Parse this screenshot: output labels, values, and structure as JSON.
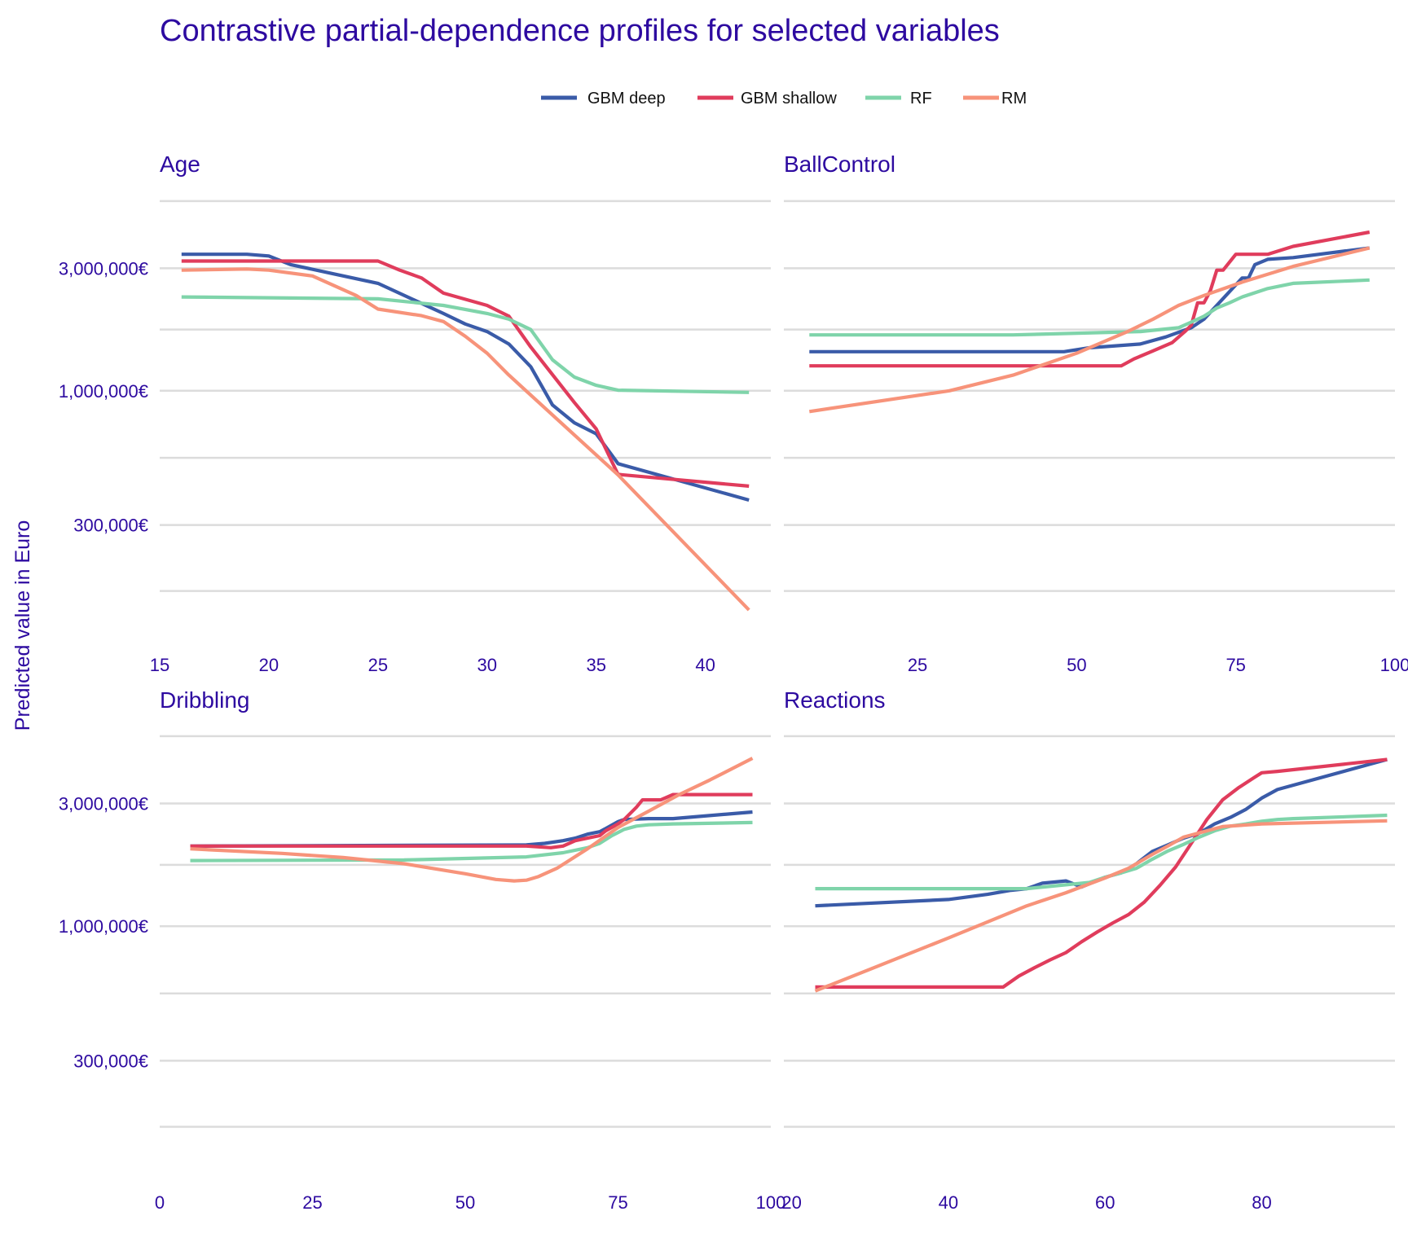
{
  "chart_data": {
    "type": "line",
    "title": "Contrastive partial-dependence profiles for selected variables",
    "ylabel": "Predicted value in Euro",
    "y_scale": "log10",
    "ylim": [
      120000,
      6200000
    ],
    "y_ticks": [
      {
        "value": 300000,
        "label": "300,000€"
      },
      {
        "value": 1000000,
        "label": "1,000,000€"
      },
      {
        "value": 3000000,
        "label": "3,000,000€"
      }
    ],
    "y_minor_gridlines": [
      166000,
      548000,
      1732000,
      5480000
    ],
    "legend_position": "top",
    "legend": [
      {
        "name": "GBM deep",
        "color": "#3a5ba8"
      },
      {
        "name": "GBM shallow",
        "color": "#e03c5c"
      },
      {
        "name": "RF",
        "color": "#7fd4aa"
      },
      {
        "name": "RM",
        "color": "#f7937a"
      }
    ],
    "panels": [
      {
        "name": "Age",
        "xlim": [
          15,
          43
        ],
        "x_ticks": [
          15,
          20,
          25,
          30,
          35,
          40
        ],
        "series": [
          {
            "name": "GBM deep",
            "x": [
              16,
              19,
              20,
              21,
              23,
              25,
              28,
              29,
              30,
              31,
              32,
              33,
              34,
              35,
              36,
              42
            ],
            "y": [
              3400000,
              3400000,
              3350000,
              3100000,
              2850000,
              2620000,
              2000000,
              1820000,
              1700000,
              1520000,
              1240000,
              880000,
              750000,
              680000,
              520000,
              375000
            ]
          },
          {
            "name": "GBM shallow",
            "x": [
              16,
              25,
              26,
              27,
              28,
              30,
              31,
              32,
              34,
              35,
              36,
              42
            ],
            "y": [
              3200000,
              3200000,
              2950000,
              2750000,
              2400000,
              2150000,
              1950000,
              1480000,
              900000,
              710000,
              472000,
              425000
            ]
          },
          {
            "name": "RF",
            "x": [
              16,
              25,
              28,
              30,
              31,
              32,
              33,
              34,
              35,
              36,
              42
            ],
            "y": [
              2320000,
              2280000,
              2150000,
              2000000,
              1900000,
              1730000,
              1320000,
              1130000,
              1050000,
              1005000,
              985000
            ]
          },
          {
            "name": "RM",
            "x": [
              16,
              19,
              20,
              22,
              24,
              25,
              27,
              28,
              29,
              30,
              31,
              36,
              42
            ],
            "y": [
              2950000,
              2980000,
              2950000,
              2800000,
              2350000,
              2080000,
              1960000,
              1860000,
              1630000,
              1400000,
              1150000,
              470000,
              140000
            ]
          }
        ]
      },
      {
        "name": "BallControl",
        "xlim": [
          4,
          100
        ],
        "x_ticks": [
          25,
          50,
          75,
          100
        ],
        "series": [
          {
            "name": "GBM deep",
            "x": [
              8,
              48,
              52,
              60,
              64,
              68,
              70,
              76,
              77,
              78,
              80,
              84,
              96
            ],
            "y": [
              1420000,
              1420000,
              1470000,
              1520000,
              1620000,
              1760000,
              1900000,
              2750000,
              2750000,
              3100000,
              3250000,
              3300000,
              3600000
            ]
          },
          {
            "name": "GBM shallow",
            "x": [
              8,
              57,
              59,
              62,
              65,
              67,
              68,
              69,
              70,
              71,
              72,
              73,
              75,
              76,
              80,
              84,
              96
            ],
            "y": [
              1250000,
              1250000,
              1330000,
              1430000,
              1540000,
              1700000,
              1800000,
              2200000,
              2200000,
              2450000,
              2950000,
              2950000,
              3400000,
              3400000,
              3400000,
              3650000,
              4150000
            ]
          },
          {
            "name": "RF",
            "x": [
              8,
              40,
              60,
              66,
              68,
              70,
              72,
              74,
              76,
              80,
              84,
              96
            ],
            "y": [
              1650000,
              1650000,
              1700000,
              1760000,
              1850000,
              1950000,
              2100000,
              2200000,
              2320000,
              2500000,
              2620000,
              2700000
            ]
          },
          {
            "name": "RM",
            "x": [
              8,
              30,
              40,
              50,
              58,
              62,
              66,
              70,
              76,
              84,
              96
            ],
            "y": [
              830000,
              1000000,
              1150000,
              1400000,
              1700000,
              1900000,
              2150000,
              2350000,
              2650000,
              3050000,
              3600000
            ]
          }
        ]
      },
      {
        "name": "Dribbling",
        "xlim": [
          0,
          100
        ],
        "x_ticks": [
          0,
          25,
          50,
          75,
          100
        ],
        "series": [
          {
            "name": "GBM deep",
            "x": [
              5,
              60,
              63,
              66,
              68,
              70,
              72,
              73,
              75,
              76,
              80,
              84,
              97
            ],
            "y": [
              2050000,
              2070000,
              2100000,
              2150000,
              2200000,
              2280000,
              2330000,
              2400000,
              2550000,
              2600000,
              2620000,
              2620000,
              2780000
            ]
          },
          {
            "name": "GBM shallow",
            "x": [
              5,
              60,
              64,
              66,
              68,
              70,
              72,
              73,
              75,
              76,
              78,
              79,
              82,
              84,
              97
            ],
            "y": [
              2050000,
              2050000,
              2020000,
              2050000,
              2150000,
              2200000,
              2250000,
              2350000,
              2500000,
              2600000,
              2900000,
              3100000,
              3100000,
              3250000,
              3250000
            ]
          },
          {
            "name": "RF",
            "x": [
              5,
              40,
              60,
              66,
              70,
              72,
              74,
              76,
              78,
              80,
              84,
              97
            ],
            "y": [
              1800000,
              1810000,
              1860000,
              1930000,
              2020000,
              2100000,
              2250000,
              2380000,
              2450000,
              2480000,
              2500000,
              2530000
            ]
          },
          {
            "name": "RM",
            "x": [
              5,
              20,
              30,
              40,
              50,
              55,
              58,
              60,
              62,
              65,
              70,
              75,
              80,
              85,
              90,
              97
            ],
            "y": [
              2000000,
              1920000,
              1850000,
              1750000,
              1600000,
              1520000,
              1500000,
              1510000,
              1560000,
              1680000,
              2000000,
              2420000,
              2800000,
              3250000,
              3700000,
              4500000
            ]
          }
        ]
      },
      {
        "name": "Reactions",
        "xlim": [
          19,
          97
        ],
        "x_ticks": [
          20,
          40,
          60,
          80
        ],
        "series": [
          {
            "name": "GBM deep",
            "x": [
              23,
              40,
              45,
              48,
              50,
              52,
              55,
              57,
              60,
              62,
              64,
              66,
              68,
              70,
              72,
              74,
              76,
              78,
              80,
              82,
              96
            ],
            "y": [
              1200000,
              1270000,
              1330000,
              1380000,
              1400000,
              1470000,
              1500000,
              1420000,
              1550000,
              1610000,
              1750000,
              1950000,
              2070000,
              2200000,
              2300000,
              2500000,
              2650000,
              2850000,
              3150000,
              3400000,
              4450000
            ]
          },
          {
            "name": "GBM shallow",
            "x": [
              23,
              47,
              49,
              51,
              53,
              55,
              57,
              59,
              61,
              63,
              65,
              67,
              69,
              71,
              73,
              75,
              77,
              79,
              80,
              82,
              96
            ],
            "y": [
              580000,
              580000,
              640000,
              690000,
              740000,
              790000,
              870000,
              950000,
              1030000,
              1110000,
              1240000,
              1440000,
              1700000,
              2100000,
              2600000,
              3100000,
              3450000,
              3780000,
              3950000,
              4000000,
              4450000
            ]
          },
          {
            "name": "RF",
            "x": [
              23,
              50,
              58,
              60,
              62,
              64,
              66,
              68,
              70,
              72,
              74,
              76,
              78,
              80,
              82,
              84,
              96
            ],
            "y": [
              1400000,
              1400000,
              1480000,
              1550000,
              1610000,
              1680000,
              1820000,
              1960000,
              2080000,
              2220000,
              2350000,
              2450000,
              2500000,
              2560000,
              2600000,
              2620000,
              2700000
            ]
          },
          {
            "name": "RM",
            "x": [
              23,
              30,
              40,
              50,
              55,
              60,
              63,
              66,
              68,
              70,
              75,
              80,
              96
            ],
            "y": [
              560000,
              680000,
              900000,
              1200000,
              1350000,
              1540000,
              1680000,
              1900000,
              2050000,
              2220000,
              2440000,
              2500000,
              2570000
            ]
          }
        ]
      }
    ]
  }
}
